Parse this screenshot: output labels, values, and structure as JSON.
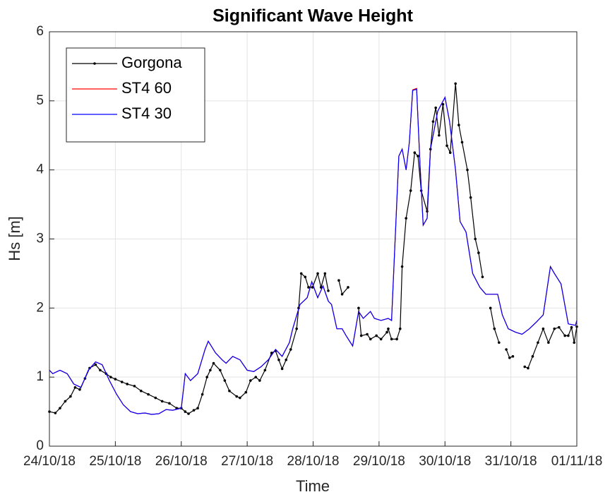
{
  "chart_data": {
    "type": "line",
    "title": "Significant Wave Height",
    "xlabel": "Time",
    "ylabel": "Hs  [m]",
    "xlim": [
      0,
      8
    ],
    "xticks": [
      {
        "value": 0,
        "label": "24/10/18"
      },
      {
        "value": 1,
        "label": "25/10/18"
      },
      {
        "value": 2,
        "label": "26/10/18"
      },
      {
        "value": 3,
        "label": "27/10/18"
      },
      {
        "value": 4,
        "label": "28/10/18"
      },
      {
        "value": 5,
        "label": "29/10/18"
      },
      {
        "value": 6,
        "label": "30/10/18"
      },
      {
        "value": 7,
        "label": "31/10/18"
      },
      {
        "value": 8,
        "label": "01/11/18"
      }
    ],
    "ylim": [
      0,
      6
    ],
    "yticks": [
      0,
      1,
      2,
      3,
      4,
      5,
      6
    ],
    "grid": true,
    "legend": "upper left",
    "series": [
      {
        "name": "Gorgona",
        "color": "#000000",
        "marker": true,
        "x": [
          0,
          0.09,
          0.16,
          0.24,
          0.32,
          0.39,
          0.46,
          0.54,
          0.61,
          0.7,
          0.77,
          0.86,
          0.93,
          1.0,
          1.1,
          1.18,
          1.29,
          1.39,
          1.5,
          1.61,
          1.71,
          1.82,
          1.93,
          2.0,
          2.06,
          2.11,
          2.19,
          2.25,
          2.32,
          2.39,
          2.44,
          2.49,
          2.59,
          2.66,
          2.73,
          2.84,
          2.89,
          2.98,
          3.05,
          3.13,
          3.19,
          3.27,
          3.37,
          3.43,
          3.48,
          3.53,
          3.59,
          3.66,
          3.75,
          3.78,
          3.82,
          3.88,
          3.93,
          3.99,
          4.07,
          4.12,
          4.18,
          4.23,
          4.3,
          4.39,
          4.44,
          4.53,
          4.6,
          4.69,
          4.73,
          4.82,
          4.87,
          4.96,
          5.03,
          5.12,
          5.14,
          5.19,
          5.27,
          5.32,
          5.35,
          5.41,
          5.48,
          5.54,
          5.59,
          5.64,
          5.73,
          5.78,
          5.82,
          5.86,
          5.91,
          5.97,
          6.03,
          6.08,
          6.16,
          6.21,
          6.26,
          6.34,
          6.39,
          6.46,
          6.51,
          6.57,
          6.64,
          6.69,
          6.75,
          6.82,
          6.87,
          6.93,
          6.98,
          7.03,
          7.12,
          7.21,
          7.26,
          7.33,
          7.41,
          7.49,
          7.57,
          7.66,
          7.73,
          7.82,
          7.87,
          7.92,
          7.96,
          8.0
        ],
        "values": [
          0.5,
          0.48,
          0.55,
          0.65,
          0.72,
          0.85,
          0.82,
          0.98,
          1.13,
          1.18,
          1.1,
          1.05,
          1.0,
          0.97,
          0.93,
          0.9,
          0.87,
          0.8,
          0.75,
          0.7,
          0.65,
          0.62,
          0.55,
          0.55,
          0.5,
          0.47,
          0.52,
          0.55,
          0.75,
          1.0,
          1.1,
          1.2,
          1.1,
          0.95,
          0.8,
          0.72,
          0.7,
          0.78,
          0.95,
          1.0,
          0.95,
          1.1,
          1.35,
          1.38,
          1.25,
          1.12,
          1.25,
          1.4,
          1.7,
          2.0,
          2.5,
          2.45,
          2.3,
          2.3,
          2.5,
          2.3,
          2.5,
          2.25,
          null,
          2.4,
          2.2,
          2.3,
          null,
          2.0,
          1.6,
          1.62,
          1.55,
          1.6,
          1.55,
          1.65,
          1.7,
          1.55,
          1.55,
          1.7,
          2.6,
          3.3,
          3.7,
          4.25,
          4.2,
          3.7,
          3.4,
          4.3,
          4.7,
          4.9,
          4.5,
          4.95,
          4.35,
          4.25,
          5.25,
          4.65,
          4.4,
          4.0,
          3.6,
          3.0,
          2.8,
          2.45,
          null,
          2.0,
          1.7,
          1.5,
          null,
          1.4,
          1.28,
          1.3,
          null,
          1.15,
          1.13,
          1.3,
          1.5,
          1.7,
          1.5,
          1.7,
          1.72,
          1.6,
          1.6,
          1.72,
          1.5,
          1.73
        ]
      },
      {
        "name": "ST4 60",
        "color": "#ff0000",
        "x": [
          0,
          0.05,
          0.16,
          0.27,
          0.37,
          0.48,
          0.59,
          0.7,
          0.8,
          0.91,
          1.02,
          1.12,
          1.23,
          1.34,
          1.45,
          1.55,
          1.66,
          1.77,
          1.87,
          2.0,
          2.06,
          2.14,
          2.25,
          2.36,
          2.41,
          2.52,
          2.62,
          2.68,
          2.78,
          2.89,
          3.0,
          3.1,
          3.21,
          3.32,
          3.43,
          3.53,
          3.64,
          3.69,
          3.8,
          3.91,
          3.98,
          4.07,
          4.15,
          4.23,
          4.28,
          4.36,
          4.44,
          4.5,
          4.6,
          4.69,
          4.76,
          4.87,
          4.93,
          5.03,
          5.14,
          5.19,
          5.3,
          5.35,
          5.41,
          5.46,
          5.51,
          5.57,
          5.62,
          5.67,
          5.73,
          5.78,
          5.84,
          5.89,
          6.0,
          6.07,
          6.16,
          6.23,
          6.32,
          6.37,
          6.42,
          6.53,
          6.62,
          6.69,
          6.8,
          6.87,
          6.96,
          7.07,
          7.17,
          7.28,
          7.39,
          7.49,
          7.6,
          7.66,
          7.76,
          7.87,
          7.98,
          8.0
        ],
        "values": [
          1.1,
          1.05,
          1.1,
          1.05,
          0.9,
          0.85,
          1.1,
          1.22,
          1.18,
          0.95,
          0.75,
          0.6,
          0.5,
          0.47,
          0.48,
          0.46,
          0.47,
          0.53,
          0.52,
          0.55,
          1.05,
          0.95,
          1.05,
          1.4,
          1.52,
          1.35,
          1.25,
          1.2,
          1.3,
          1.25,
          1.1,
          1.08,
          1.15,
          1.25,
          1.4,
          1.3,
          1.5,
          1.7,
          2.05,
          2.15,
          2.38,
          2.15,
          2.32,
          2.1,
          2.05,
          1.7,
          1.7,
          1.6,
          1.45,
          1.95,
          1.85,
          1.95,
          1.85,
          1.82,
          1.85,
          1.82,
          4.2,
          4.3,
          4.0,
          4.4,
          5.16,
          5.18,
          4.1,
          3.2,
          3.3,
          4.3,
          4.6,
          4.85,
          5.05,
          4.7,
          4.0,
          3.25,
          3.1,
          2.8,
          2.5,
          2.3,
          2.2,
          2.2,
          2.2,
          1.9,
          1.7,
          1.65,
          1.62,
          1.7,
          1.8,
          1.9,
          2.6,
          2.5,
          2.35,
          1.77,
          1.75,
          1.82
        ]
      },
      {
        "name": "ST4 30",
        "color": "#0000ff",
        "x": [
          0,
          0.05,
          0.16,
          0.27,
          0.37,
          0.48,
          0.59,
          0.7,
          0.8,
          0.91,
          1.02,
          1.12,
          1.23,
          1.34,
          1.45,
          1.55,
          1.66,
          1.77,
          1.87,
          2.0,
          2.06,
          2.14,
          2.25,
          2.36,
          2.41,
          2.52,
          2.62,
          2.68,
          2.78,
          2.89,
          3.0,
          3.1,
          3.21,
          3.32,
          3.43,
          3.53,
          3.64,
          3.69,
          3.8,
          3.91,
          3.98,
          4.07,
          4.15,
          4.23,
          4.28,
          4.36,
          4.44,
          4.5,
          4.6,
          4.69,
          4.76,
          4.87,
          4.93,
          5.03,
          5.14,
          5.19,
          5.3,
          5.35,
          5.41,
          5.46,
          5.51,
          5.57,
          5.62,
          5.67,
          5.73,
          5.78,
          5.84,
          5.89,
          6.0,
          6.07,
          6.16,
          6.23,
          6.32,
          6.37,
          6.42,
          6.53,
          6.62,
          6.69,
          6.8,
          6.87,
          6.96,
          7.07,
          7.17,
          7.28,
          7.39,
          7.49,
          7.6,
          7.66,
          7.76,
          7.87,
          7.98,
          8.0
        ],
        "values": [
          1.1,
          1.05,
          1.1,
          1.05,
          0.9,
          0.85,
          1.1,
          1.22,
          1.18,
          0.95,
          0.75,
          0.6,
          0.5,
          0.47,
          0.48,
          0.46,
          0.47,
          0.53,
          0.52,
          0.55,
          1.05,
          0.95,
          1.05,
          1.4,
          1.52,
          1.35,
          1.25,
          1.2,
          1.3,
          1.25,
          1.1,
          1.08,
          1.15,
          1.25,
          1.4,
          1.3,
          1.5,
          1.7,
          2.05,
          2.15,
          2.38,
          2.15,
          2.32,
          2.1,
          2.05,
          1.7,
          1.7,
          1.6,
          1.45,
          1.95,
          1.85,
          1.95,
          1.85,
          1.82,
          1.85,
          1.82,
          4.2,
          4.3,
          4.0,
          4.4,
          5.15,
          5.17,
          4.1,
          3.2,
          3.3,
          4.3,
          4.6,
          4.85,
          5.05,
          4.7,
          4.0,
          3.25,
          3.1,
          2.8,
          2.5,
          2.3,
          2.2,
          2.2,
          2.2,
          1.9,
          1.7,
          1.65,
          1.62,
          1.7,
          1.8,
          1.9,
          2.6,
          2.5,
          2.35,
          1.77,
          1.75,
          1.82
        ]
      }
    ]
  }
}
